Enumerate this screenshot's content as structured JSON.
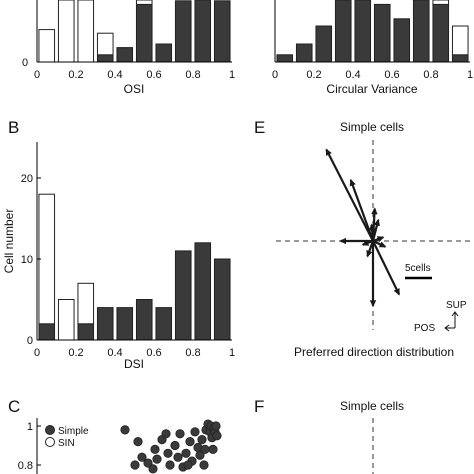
{
  "figure": {
    "panels": [
      {
        "letter": "",
        "chart_data": {
          "type": "bar",
          "stacked": true,
          "xlabel": "OSI",
          "ylabel": "",
          "xlim": [
            0,
            1
          ],
          "xticks": [
            "0",
            "0.2",
            "0.4",
            "0.6",
            "0.8",
            "1"
          ],
          "bin_centers": [
            0.05,
            0.15,
            0.25,
            0.35,
            0.45,
            0.55,
            0.65,
            0.75,
            0.85,
            0.95
          ],
          "series": [
            {
              "name": "Simple",
              "color": "#3a3a3a",
              "values": [
                0,
                0,
                0,
                2,
                4,
                16,
                5,
                17,
                22,
                17
              ]
            },
            {
              "name": "SIN",
              "color": "#ffffff",
              "values": [
                9,
                22,
                22,
                6,
                0,
                2,
                0,
                0,
                0,
                0
              ]
            }
          ],
          "y_visible_max": 17
        }
      },
      {
        "letter": "",
        "chart_data": {
          "type": "bar",
          "stacked": true,
          "xlabel": "Circular Variance",
          "ylabel": "",
          "xlim": [
            0,
            1
          ],
          "xticks": [
            "0",
            "0.2",
            "0.4",
            "0.6",
            "0.8",
            "1"
          ],
          "bin_centers": [
            0.05,
            0.15,
            0.25,
            0.35,
            0.45,
            0.55,
            0.65,
            0.75,
            0.85,
            0.95
          ],
          "series": [
            {
              "name": "Simple",
              "color": "#3a3a3a",
              "values": [
                2,
                5,
                10,
                20,
                20,
                16,
                12,
                18,
                16,
                2
              ]
            },
            {
              "name": "SIN",
              "color": "#ffffff",
              "values": [
                0,
                0,
                0,
                0,
                0,
                0,
                0,
                0,
                2,
                8
              ]
            }
          ],
          "y_visible_max": 17
        }
      },
      {
        "letter": "B",
        "chart_data": {
          "type": "bar",
          "stacked": true,
          "xlabel": "DSI",
          "ylabel": "Cell number",
          "xlim": [
            0,
            1
          ],
          "ylim": [
            0,
            20
          ],
          "xticks": [
            "0",
            "0.2",
            "0.4",
            "0.6",
            "0.8",
            "1"
          ],
          "yticks": [
            "0",
            "10",
            "20"
          ],
          "bin_centers": [
            0.05,
            0.15,
            0.25,
            0.35,
            0.45,
            0.55,
            0.65,
            0.75,
            0.85,
            0.95
          ],
          "series": [
            {
              "name": "Simple",
              "color": "#3a3a3a",
              "values": [
                2,
                0,
                2,
                4,
                4,
                5,
                4,
                11,
                12,
                10
              ]
            },
            {
              "name": "SIN",
              "color": "#ffffff",
              "values": [
                16,
                5,
                5,
                0,
                0,
                0,
                0,
                0,
                0,
                0
              ]
            }
          ]
        }
      },
      {
        "letter": "E",
        "title": "Simple cells",
        "chart_data": {
          "type": "polar-vectors",
          "title": "Simple cells",
          "xlabel": "Preferred direction distribution",
          "scale_bar_label": "5cells",
          "scale_bar_cells": 5,
          "orientation": {
            "up": "SUP",
            "left": "POS"
          },
          "vectors": [
            {
              "direction_deg": 117,
              "length_cells": 19
            },
            {
              "direction_deg": 110,
              "length_cells": 12
            },
            {
              "direction_deg": 87,
              "length_cells": 6
            },
            {
              "direction_deg": 76,
              "length_cells": 4
            },
            {
              "direction_deg": 95,
              "length_cells": 3
            },
            {
              "direction_deg": 180,
              "length_cells": 6
            },
            {
              "direction_deg": 200,
              "length_cells": 2
            },
            {
              "direction_deg": 335,
              "length_cells": 2.5
            },
            {
              "direction_deg": 20,
              "length_cells": 2
            },
            {
              "direction_deg": 296,
              "length_cells": 11
            },
            {
              "direction_deg": 270,
              "length_cells": 12
            },
            {
              "direction_deg": 250,
              "length_cells": 3
            }
          ]
        }
      },
      {
        "letter": "C",
        "chart_data": {
          "type": "scatter",
          "ylabel": "",
          "yticks": [
            "0.8",
            "1"
          ],
          "ylim": [
            0.74,
            1.05
          ],
          "xlim": [
            0,
            1
          ],
          "legend": [
            {
              "name": "Simple",
              "marker": "filled"
            },
            {
              "name": "SIN",
              "marker": "open"
            }
          ],
          "series": [
            {
              "name": "Simple",
              "points": [
                [
                  0.05,
                  0.98
                ],
                [
                  0.18,
                  0.92
                ],
                [
                  0.35,
                  0.88
                ],
                [
                  0.42,
                  0.93
                ],
                [
                  0.22,
                  0.84
                ],
                [
                  0.28,
                  0.81
                ],
                [
                  0.37,
                  0.83
                ],
                [
                  0.48,
                  0.86
                ],
                [
                  0.5,
                  0.8
                ],
                [
                  0.55,
                  0.9
                ],
                [
                  0.58,
                  0.84
                ],
                [
                  0.63,
                  0.79
                ],
                [
                  0.66,
                  0.86
                ],
                [
                  0.7,
                  0.92
                ],
                [
                  0.72,
                  0.82
                ],
                [
                  0.75,
                  0.97
                ],
                [
                  0.78,
                  0.89
                ],
                [
                  0.8,
                  0.85
                ],
                [
                  0.82,
                  0.93
                ],
                [
                  0.84,
                  0.8
                ],
                [
                  0.86,
                  0.98
                ],
                [
                  0.88,
                  1.01
                ],
                [
                  0.9,
                  0.97
                ],
                [
                  0.91,
                  1.0
                ],
                [
                  0.92,
                  0.94
                ],
                [
                  0.93,
                  0.88
                ],
                [
                  0.94,
                  0.99
                ],
                [
                  0.95,
                  0.97
                ],
                [
                  0.96,
                  1.0
                ],
                [
                  0.97,
                  0.95
                ],
                [
                  0.46,
                  0.96
                ],
                [
                  0.6,
                  0.96
                ],
                [
                  0.33,
                  0.78
                ],
                [
                  0.15,
                  0.8
                ],
                [
                  0.68,
                  0.8
                ],
                [
                  0.85,
                  0.88
                ]
              ]
            }
          ]
        }
      },
      {
        "letter": "F",
        "title": "Simple cells",
        "chart_data": {
          "type": "polar-vectors",
          "title": "Simple cells",
          "vectors": []
        }
      }
    ]
  }
}
